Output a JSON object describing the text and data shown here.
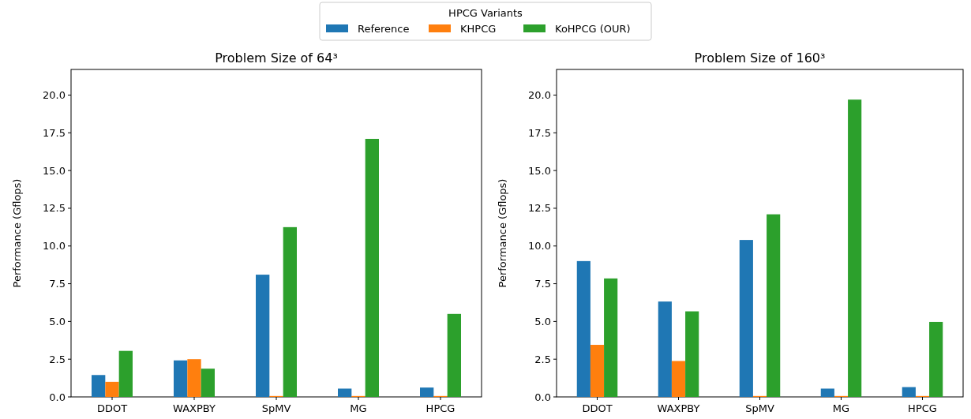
{
  "chart_data": [
    {
      "type": "bar",
      "title": "Problem Size of 64³",
      "ylabel": "Performance (Gflops)",
      "categories": [
        "DDOT",
        "WAXPBY",
        "SpMV",
        "MG",
        "HPCG"
      ],
      "legend": "top",
      "legend_title": "HPCG Variants",
      "ylim": [
        0,
        21.7
      ],
      "yticks": [
        {
          "value": 0,
          "label": "0.0"
        },
        2.5,
        {
          "value": 5,
          "label": "5.0"
        },
        7.5,
        {
          "value": 10,
          "label": "10.0"
        },
        12.5,
        {
          "value": 15,
          "label": "15.0"
        },
        17.5,
        {
          "value": 20,
          "label": "20.0"
        }
      ],
      "grid": false,
      "series": [
        {
          "name": "Reference",
          "color": "#1f77b4",
          "values": [
            1.45,
            2.42,
            8.1,
            0.55,
            0.62
          ]
        },
        {
          "name": "KHPCG",
          "color": "#ff7f0e",
          "values": [
            1.0,
            2.5,
            0.06,
            0.06,
            0.06
          ]
        },
        {
          "name": "KoHPCG (OUR)",
          "color": "#2ca02c",
          "values": [
            3.05,
            1.87,
            11.25,
            17.1,
            5.5
          ]
        }
      ]
    },
    {
      "type": "bar",
      "title": "Problem Size of 160³",
      "ylabel": "Performance (Gflops)",
      "categories": [
        "DDOT",
        "WAXPBY",
        "SpMV",
        "MG",
        "HPCG"
      ],
      "legend": "top",
      "ylim": [
        0,
        21.7
      ],
      "yticks": [
        {
          "value": 0,
          "label": "0.0"
        },
        2.5,
        {
          "value": 5,
          "label": "5.0"
        },
        7.5,
        {
          "value": 10,
          "label": "10.0"
        },
        12.5,
        {
          "value": 15,
          "label": "15.0"
        },
        17.5,
        {
          "value": 20,
          "label": "20.0"
        }
      ],
      "grid": false,
      "series": [
        {
          "name": "Reference",
          "color": "#1f77b4",
          "values": [
            9.0,
            6.32,
            10.4,
            0.55,
            0.65
          ]
        },
        {
          "name": "KHPCG",
          "color": "#ff7f0e",
          "values": [
            3.45,
            2.38,
            0.06,
            0.06,
            0.06
          ]
        },
        {
          "name": "KoHPCG (OUR)",
          "color": "#2ca02c",
          "values": [
            7.85,
            5.67,
            12.1,
            19.7,
            4.97
          ]
        }
      ]
    }
  ]
}
